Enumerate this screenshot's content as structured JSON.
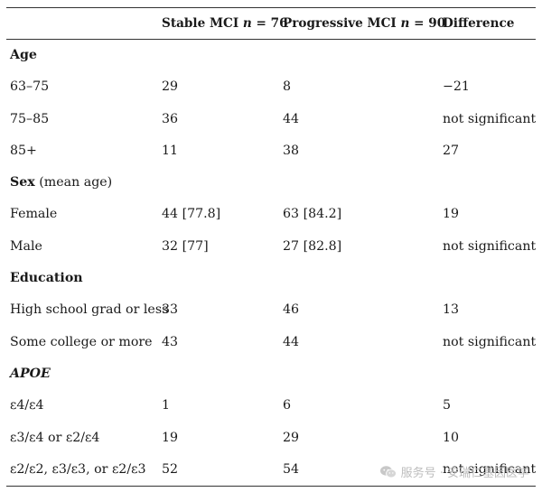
{
  "header": {
    "col_label": "",
    "col_stable": "Stable MCI n = 76",
    "col_progressive": "Progressive MCI n = 90",
    "col_difference": "Difference"
  },
  "sections": [
    {
      "title": "Age",
      "title_note": "",
      "rows": [
        {
          "label": "63–75",
          "stable": "29",
          "progressive": "8",
          "difference": "−21"
        },
        {
          "label": "75–85",
          "stable": "36",
          "progressive": "44",
          "difference": "not significant"
        },
        {
          "label": "85+",
          "stable": "11",
          "progressive": "38",
          "difference": "27"
        }
      ]
    },
    {
      "title": "Sex",
      "title_note": "(mean age)",
      "rows": [
        {
          "label": "Female",
          "stable": "44 [77.8]",
          "progressive": "63 [84.2]",
          "difference": "19"
        },
        {
          "label": "Male",
          "stable": "32 [77]",
          "progressive": "27 [82.8]",
          "difference": "not significant"
        }
      ]
    },
    {
      "title": "Education",
      "title_note": "",
      "rows": [
        {
          "label": "High school grad or less",
          "stable": "33",
          "progressive": "46",
          "difference": "13"
        },
        {
          "label": "Some college or more",
          "stable": "43",
          "progressive": "44",
          "difference": "not significant"
        }
      ]
    },
    {
      "title": "APOE",
      "title_note": "",
      "rows": [
        {
          "label": "ε4/ε4",
          "stable": "1",
          "progressive": "6",
          "difference": "5"
        },
        {
          "label": "ε3/ε4 or ε2/ε4",
          "stable": "19",
          "progressive": "29",
          "difference": "10"
        },
        {
          "label": "ε2/ε2, ε3/ε3, or ε2/ε3",
          "stable": "52",
          "progressive": "54",
          "difference": "not significant"
        }
      ]
    }
  ],
  "watermark": {
    "text": "服务号 · 安瑞仁基因医学",
    "icon": "wechat-icon"
  }
}
